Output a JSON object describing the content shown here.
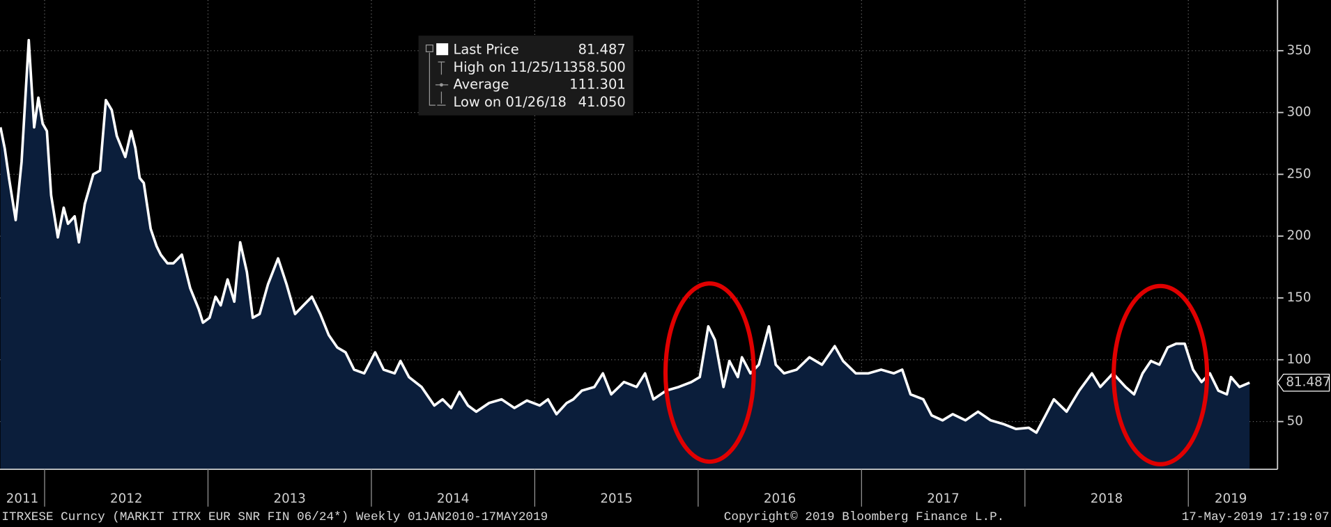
{
  "chart_data": {
    "type": "area",
    "x": [
      2011.73,
      2011.756,
      2011.782,
      2011.823,
      2011.859,
      2011.903,
      2011.936,
      2011.962,
      2011.988,
      2012.014,
      2012.04,
      2012.081,
      2012.117,
      2012.143,
      2012.184,
      2012.21,
      2012.246,
      2012.298,
      2012.339,
      2012.375,
      2012.411,
      2012.442,
      2012.494,
      2012.53,
      2012.556,
      2012.582,
      2012.607,
      2012.649,
      2012.685,
      2012.711,
      2012.752,
      2012.788,
      2012.84,
      2012.891,
      2012.943,
      2012.969,
      2013.01,
      2013.046,
      2013.078,
      2013.12,
      2013.161,
      2013.197,
      2013.238,
      2013.274,
      2013.316,
      2013.367,
      2013.429,
      2013.481,
      2013.533,
      2013.584,
      2013.636,
      2013.687,
      2013.739,
      2013.791,
      2013.842,
      2013.894,
      2013.956,
      2014.023,
      2014.075,
      2014.142,
      2014.178,
      2014.23,
      2014.307,
      2014.385,
      2014.436,
      2014.488,
      2014.539,
      2014.591,
      2014.642,
      2014.72,
      2014.797,
      2014.875,
      2014.952,
      2015.03,
      2015.081,
      2015.133,
      2015.195,
      2015.236,
      2015.288,
      2015.365,
      2015.417,
      2015.468,
      2015.546,
      2015.623,
      2015.675,
      2015.726,
      2015.804,
      2015.881,
      2015.959,
      2016.01,
      2016.062,
      2016.103,
      2016.155,
      2016.191,
      2016.243,
      2016.268,
      2016.32,
      2016.371,
      2016.433,
      2016.475,
      2016.526,
      2016.603,
      2016.681,
      2016.758,
      2016.836,
      2016.887,
      2016.965,
      2017.042,
      2017.12,
      2017.197,
      2017.249,
      2017.3,
      2017.378,
      2017.429,
      2017.496,
      2017.558,
      2017.636,
      2017.713,
      2017.79,
      2017.868,
      2017.945,
      2018.023,
      2018.07,
      2018.126,
      2018.177,
      2018.255,
      2018.332,
      2018.41,
      2018.461,
      2018.539,
      2018.616,
      2018.668,
      2018.72,
      2018.771,
      2018.823,
      2018.874,
      2018.926,
      2018.978,
      2019.029,
      2019.081,
      2019.132,
      2019.184,
      2019.236,
      2019.261,
      2019.313,
      2019.375
    ],
    "series": [
      {
        "name": "Last Price",
        "color": "#ffffff",
        "fill": "#0b1e3b",
        "values": [
          288,
          271,
          247,
          213,
          260,
          358.5,
          288,
          312,
          291,
          285,
          233,
          199,
          223,
          210,
          216,
          195,
          226,
          250,
          253,
          310,
          302,
          281,
          264,
          285,
          271,
          247,
          243,
          206,
          192,
          185,
          178,
          178,
          185,
          158,
          141,
          130,
          134,
          151,
          144,
          165,
          147,
          195,
          171,
          134,
          137,
          161,
          182,
          161,
          137,
          144,
          151,
          137,
          120,
          110,
          106,
          92,
          89,
          106,
          92,
          89,
          99,
          86,
          78,
          63,
          68,
          61,
          74,
          63,
          58,
          65,
          68,
          61,
          67,
          63,
          68,
          56,
          65,
          68,
          75,
          78,
          89,
          72,
          82,
          78,
          89,
          68,
          75,
          78,
          82,
          86,
          127,
          116,
          78,
          99,
          86,
          102,
          89,
          96,
          127,
          96,
          89,
          92,
          102,
          96,
          111,
          99,
          89,
          89,
          92,
          89,
          92,
          72,
          68,
          55,
          51,
          56,
          51,
          58,
          51,
          48,
          44,
          45,
          41.05,
          55,
          68,
          58,
          75,
          89,
          78,
          89,
          78,
          72,
          89,
          99,
          96,
          110,
          113,
          113,
          92,
          82,
          89,
          75,
          72,
          86,
          78,
          81.487
        ]
      }
    ],
    "stats": [
      {
        "label": "High on 11/25/11",
        "value": 358.5,
        "value_label": "358.500"
      },
      {
        "label": "Average",
        "value": 111.301
      },
      {
        "label": "Low on 01/26/18",
        "value": 41.05,
        "value_label": "41.050"
      }
    ],
    "xlim": [
      2011.727,
      2019.52
    ],
    "xticks": [
      2011,
      2012,
      2013,
      2014,
      2015,
      2016,
      2017,
      2018,
      2019
    ],
    "ylim": [
      11.4,
      391
    ],
    "yticks": [
      50,
      100,
      150,
      200,
      250,
      300,
      350
    ],
    "grid": true,
    "footer": {
      "left": "ITRXESE Curncy (MARKIT ITRX EUR SNR FIN 06/24*)  Weekly 01JAN2010-17MAY2019",
      "center": "Copyright© 2019 Bloomberg Finance L.P.",
      "right": "17-May-2019 17:19:07"
    }
  }
}
